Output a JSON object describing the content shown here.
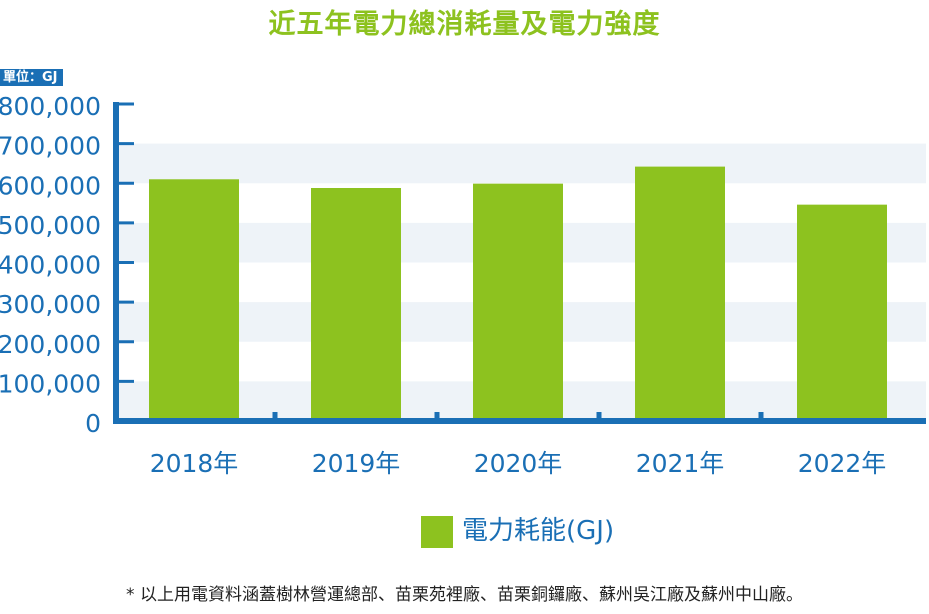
{
  "chart_data": {
    "type": "bar",
    "title": "近五年電力總消耗量及電力強度",
    "unit_label": "單位：GJ",
    "categories": [
      "2018年",
      "2019年",
      "2020年",
      "2021年",
      "2022年"
    ],
    "series": [
      {
        "name": "電力耗能(GJ)",
        "values": [
          610000,
          588000,
          599000,
          642000,
          546000
        ]
      }
    ],
    "ylim": [
      0,
      800000
    ],
    "yticks": [
      "0",
      "100,000",
      "200,000",
      "300,000",
      "400,000",
      "500,000",
      "600,000",
      "700,000",
      "800,000"
    ],
    "ytick_values": [
      0,
      100000,
      200000,
      300000,
      400000,
      500000,
      600000,
      700000,
      800000
    ],
    "grid": "alternating horizontal bands",
    "legend_position": "bottom-center"
  },
  "colors": {
    "bar": "#8dc21f",
    "axis": "#1a6fb5",
    "band": "#eef3f8",
    "title": "#8dc21f"
  },
  "footnote": "* 以上用電資料涵蓋樹林營運總部、苗栗苑裡廠、苗栗銅鑼廠、蘇州吳江廠及蘇州中山廠。"
}
